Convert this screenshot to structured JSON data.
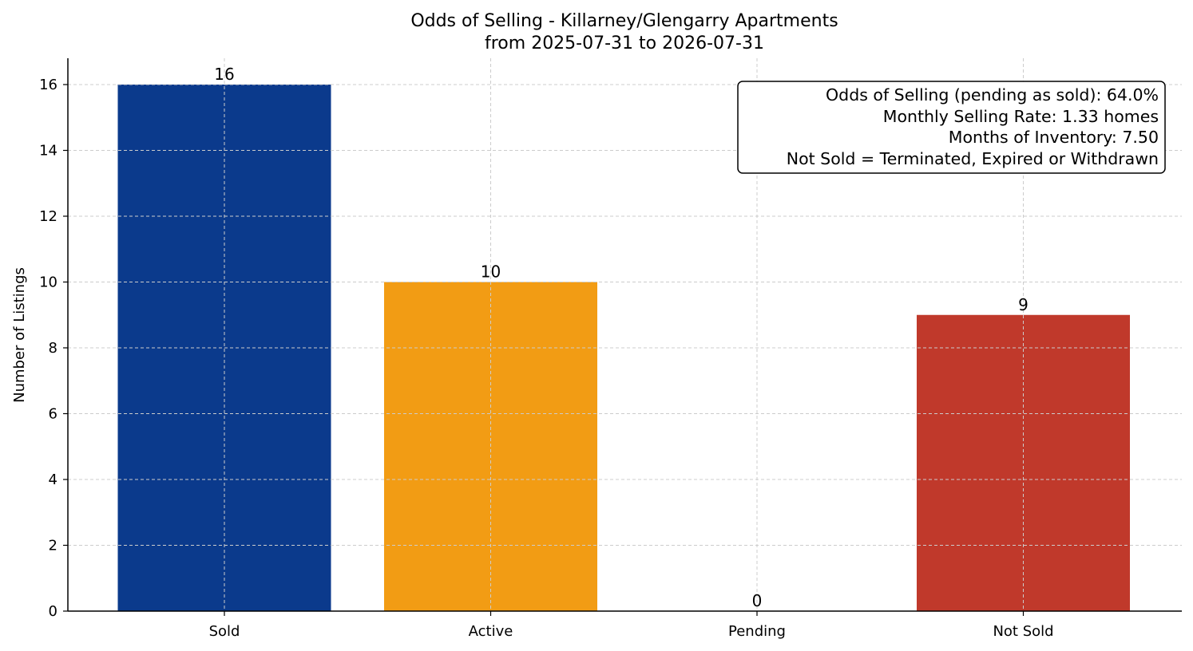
{
  "chart_data": {
    "type": "bar",
    "title": "Odds of Selling - Killarney/Glengarry Apartments",
    "subtitle": "from 2025-07-31 to 2026-07-31",
    "xlabel": "",
    "ylabel": "Number of Listings",
    "categories": [
      "Sold",
      "Active",
      "Pending",
      "Not Sold"
    ],
    "values": [
      16,
      10,
      0,
      9
    ],
    "value_labels": [
      "16",
      "10",
      "0",
      "9"
    ],
    "colors": [
      "#0b3a8c",
      "#f29c14",
      "#0b3a8c",
      "#c0392b"
    ],
    "ylim": [
      0,
      16.8
    ],
    "yticks": [
      0,
      2,
      4,
      6,
      8,
      10,
      12,
      14,
      16
    ],
    "ytick_labels": [
      "0",
      "2",
      "4",
      "6",
      "8",
      "10",
      "12",
      "14",
      "16"
    ],
    "grid": true,
    "info_box": {
      "placement": "top-right",
      "lines": [
        "Odds of Selling (pending as sold): 64.0%",
        "Monthly Selling Rate: 1.33 homes",
        "Months of Inventory: 7.50",
        "Not Sold = Terminated, Expired or Withdrawn"
      ]
    }
  }
}
